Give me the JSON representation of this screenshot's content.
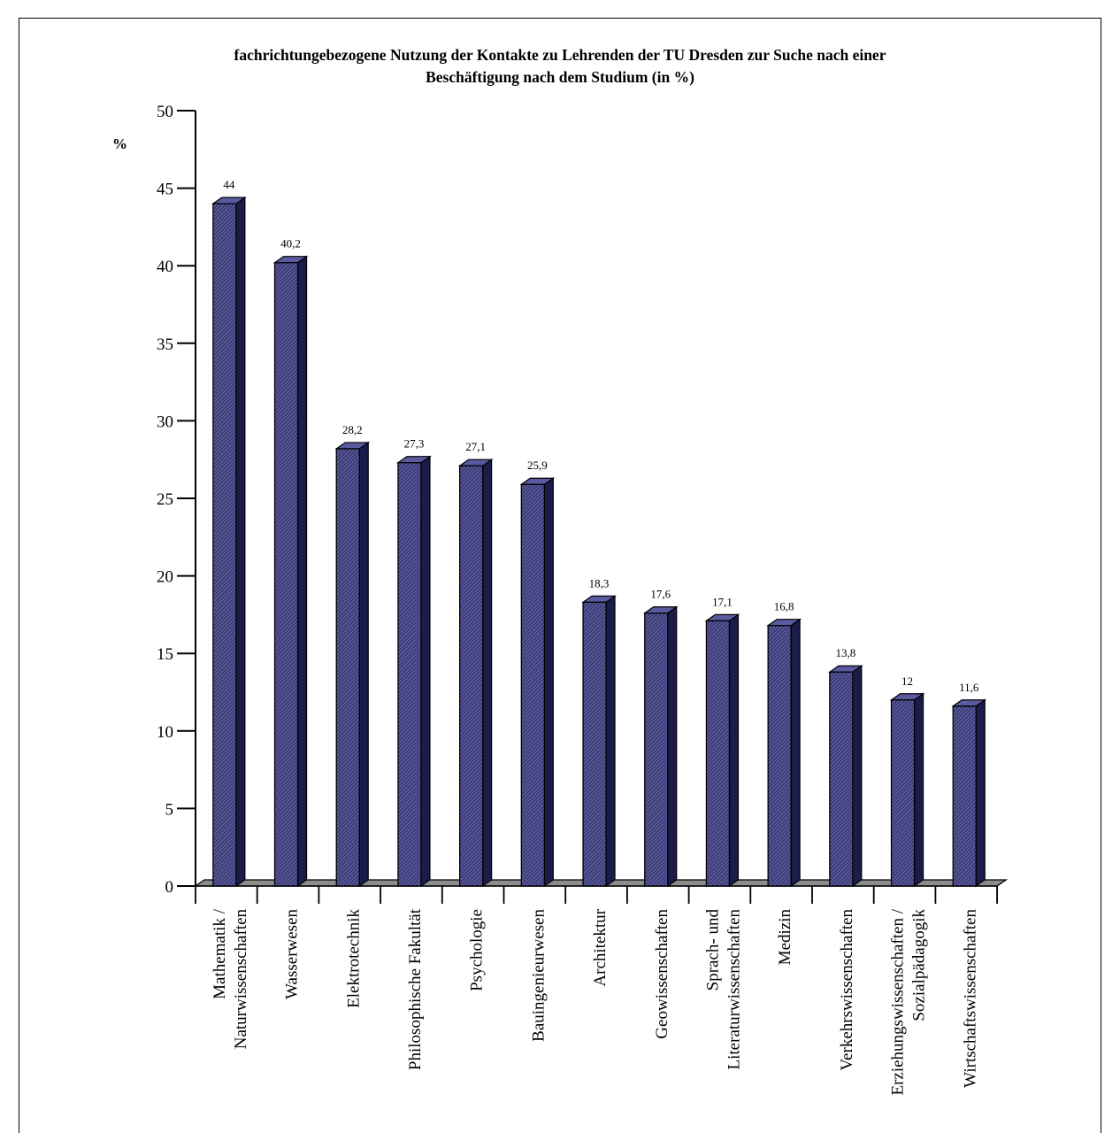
{
  "chart_data": {
    "type": "bar",
    "title_line1": "fachrichtungebezogene Nutzung der Kontakte zu Lehrenden der TU Dresden zur Suche nach einer",
    "title_line2": "Beschäftigung nach dem Studium (in %)",
    "ylabel": "%",
    "xlabel": "",
    "ylim": [
      0,
      50
    ],
    "yticks": [
      "0",
      "5",
      "10",
      "15",
      "20",
      "25",
      "30",
      "35",
      "40",
      "45",
      "50"
    ],
    "categories": [
      [
        "Mathematik /",
        "Naturwissenschaften"
      ],
      [
        "Wasserwesen"
      ],
      [
        "Elektrotechnik"
      ],
      [
        "Philosophische Fakultät"
      ],
      [
        "Psychologie"
      ],
      [
        "Bauingenieurwesen"
      ],
      [
        "Architektur"
      ],
      [
        "Geowissenschaften"
      ],
      [
        "Sprach- und",
        "Literaturwissenschaften"
      ],
      [
        "Medizin"
      ],
      [
        "Verkehrswissenschaften"
      ],
      [
        "Erziehungswissenschaften /",
        "Sozialpädagogik"
      ],
      [
        "Wirtschaftswissenschaften"
      ]
    ],
    "values": [
      44,
      40.2,
      28.2,
      27.3,
      27.1,
      25.9,
      18.3,
      17.6,
      17.1,
      16.8,
      13.8,
      12,
      11.6
    ],
    "data_labels": [
      "44",
      "40,2",
      "28,2",
      "27,3",
      "27,1",
      "25,9",
      "18,3",
      "17,6",
      "17,1",
      "16,8",
      "13,8",
      "12",
      "11,6"
    ],
    "grid": false,
    "legend": "none",
    "colors": {
      "bar_front": "#3b3b7a",
      "bar_top": "#5a5aa0",
      "bar_side": "#1c1c4a",
      "floor": "#8c8c8c"
    }
  }
}
